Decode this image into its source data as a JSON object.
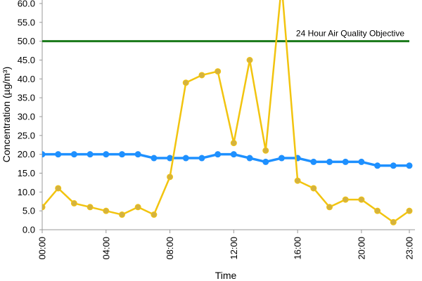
{
  "chart_data": {
    "type": "line",
    "xlabel": "Time",
    "ylabel": "Concentration (µg/m³)",
    "ylim": [
      0,
      60
    ],
    "y_ticks": [
      "0.0",
      "5.0",
      "10.0",
      "15.0",
      "20.0",
      "25.0",
      "30.0",
      "35.0",
      "40.0",
      "45.0",
      "50.0",
      "55.0",
      "60.0"
    ],
    "x_ticks": [
      "00:00",
      "04:00",
      "08:00",
      "12:00",
      "16:00",
      "20:00",
      "23:00"
    ],
    "x_tick_hours": [
      0,
      4,
      8,
      12,
      16,
      20,
      23
    ],
    "x_hours": [
      0,
      1,
      2,
      3,
      4,
      5,
      6,
      7,
      8,
      9,
      10,
      11,
      12,
      13,
      14,
      15,
      16,
      17,
      18,
      19,
      20,
      21,
      22,
      23
    ],
    "grid": false,
    "series": [
      {
        "color": "#1e90ff",
        "marker_color": "#1e90ff",
        "values": [
          20,
          20,
          20,
          20,
          20,
          20,
          20,
          19,
          19,
          19,
          19,
          20,
          20,
          19,
          18,
          19,
          19,
          18,
          18,
          18,
          18,
          17,
          17,
          17
        ]
      },
      {
        "color": "#f2c40f",
        "marker_color": "#d4b240",
        "values": [
          6,
          11,
          7,
          6,
          5,
          4,
          6,
          4,
          14,
          39,
          41,
          42,
          23,
          45,
          21,
          65,
          13,
          11,
          6,
          8,
          8,
          5,
          2,
          5
        ]
      }
    ],
    "reference_line": {
      "label": "24 Hour Air Quality Objective",
      "value": 50,
      "color": "#1a7a1a"
    }
  }
}
